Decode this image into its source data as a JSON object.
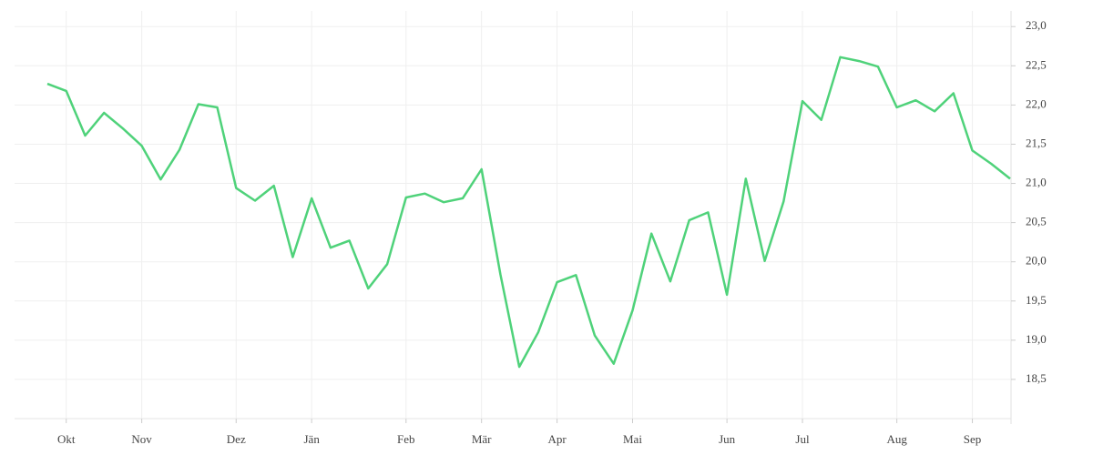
{
  "chart_data": {
    "type": "line",
    "categories": [
      null,
      "Okt",
      null,
      null,
      null,
      "Nov",
      null,
      null,
      null,
      null,
      "Dez",
      null,
      null,
      null,
      "Jän",
      null,
      null,
      null,
      null,
      "Feb",
      null,
      null,
      null,
      "Mär",
      null,
      null,
      null,
      "Apr",
      null,
      null,
      null,
      "Mai",
      null,
      null,
      null,
      null,
      "Jun",
      null,
      null,
      null,
      "Jul",
      null,
      null,
      null,
      null,
      "Aug",
      null,
      null,
      null,
      "Sep",
      null,
      null
    ],
    "values": [
      22.27,
      22.18,
      21.61,
      21.9,
      21.7,
      21.48,
      21.05,
      21.43,
      22.01,
      21.97,
      20.94,
      20.78,
      20.97,
      20.06,
      20.81,
      20.18,
      20.27,
      19.66,
      19.97,
      20.82,
      20.87,
      20.76,
      20.81,
      21.18,
      19.84,
      18.66,
      19.1,
      19.74,
      19.83,
      19.06,
      18.7,
      19.38,
      20.36,
      19.75,
      20.53,
      20.63,
      19.58,
      21.06,
      20.01,
      20.77,
      22.05,
      21.81,
      22.61,
      22.56,
      22.49,
      21.97,
      22.06,
      21.92,
      22.15,
      21.42,
      21.25,
      21.06
    ],
    "color": "#4fd27a",
    "ylim": [
      18.0,
      23.2
    ],
    "yticks": [
      {
        "value": 18.5,
        "label": "18,5"
      },
      {
        "value": 19.0,
        "label": "19,0"
      },
      {
        "value": 19.5,
        "label": "19,5"
      },
      {
        "value": 20.0,
        "label": "20,0"
      },
      {
        "value": 20.5,
        "label": "20,5"
      },
      {
        "value": 21.0,
        "label": "21,0"
      },
      {
        "value": 21.5,
        "label": "21,5"
      },
      {
        "value": 22.0,
        "label": "22,0"
      },
      {
        "value": 22.5,
        "label": "22,5"
      },
      {
        "value": 23.0,
        "label": "23,0"
      }
    ],
    "grid": true
  }
}
